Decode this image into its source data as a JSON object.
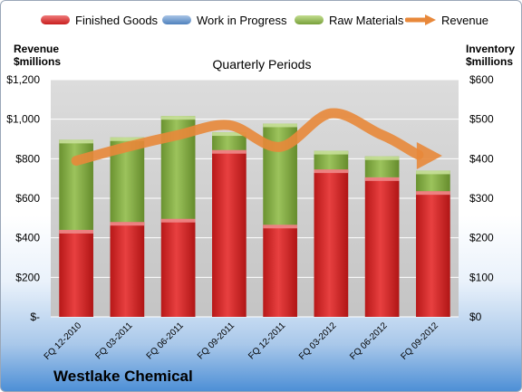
{
  "legend": {
    "finished_goods": "Finished Goods",
    "work_in_progress": "Work in Progress",
    "raw_materials": "Raw Materials",
    "revenue": "Revenue"
  },
  "left_axis_title": {
    "line1": "Revenue",
    "line2": "$millions"
  },
  "right_axis_title": {
    "line1": "Inventory",
    "line2": "$millions"
  },
  "company": "Westlake Chemical",
  "colors": {
    "finished_goods": "#d92b2b",
    "work_in_progress": "#4f81bd",
    "raw_materials": "#8db24f",
    "revenue": "#e8883a",
    "plot_background": "#d0d0d0"
  },
  "chart_data": {
    "type": "bar",
    "subtitle": "Quarterly Periods",
    "categories": [
      "FQ 12-2010",
      "FQ 03-2011",
      "FQ 06-2011",
      "FQ 09-2011",
      "FQ 12-2011",
      "FQ 03-2012",
      "FQ 06-2012",
      "FQ 09-2012"
    ],
    "stacked": true,
    "series": [
      {
        "name": "Finished Goods",
        "axis": "right",
        "values": [
          220,
          240,
          248,
          422,
          233,
          373,
          353,
          318
        ]
      },
      {
        "name": "Work in Progress",
        "axis": "right",
        "values": [
          0,
          0,
          0,
          0,
          0,
          0,
          0,
          0
        ]
      },
      {
        "name": "Raw Materials",
        "axis": "right",
        "values": [
          228,
          214,
          260,
          45,
          256,
          47,
          53,
          52
        ]
      },
      {
        "name": "Revenue",
        "axis": "left",
        "type": "line",
        "values": [
          790,
          860,
          920,
          970,
          860,
          1030,
          920,
          820
        ]
      }
    ],
    "left_axis": {
      "ylim": [
        0,
        1200
      ],
      "ticks": [
        "$-",
        "$200",
        "$400",
        "$600",
        "$800",
        "$1,000",
        "$1,200"
      ]
    },
    "right_axis": {
      "ylim": [
        0,
        600
      ],
      "ticks": [
        "$0",
        "$100",
        "$200",
        "$300",
        "$400",
        "$500",
        "$600"
      ]
    },
    "grid": true,
    "legend_position": "top"
  }
}
